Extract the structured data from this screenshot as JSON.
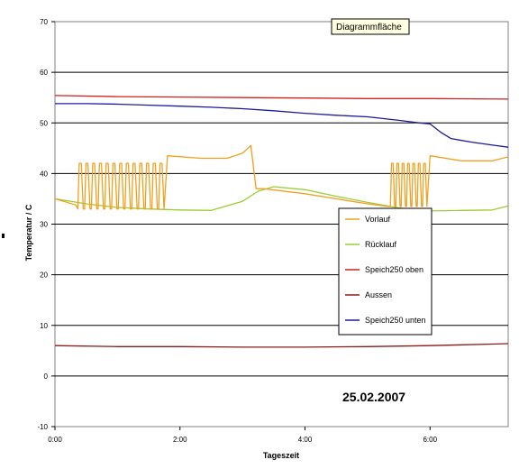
{
  "chart_data": {
    "type": "line",
    "xlabel": "Tageszeit",
    "ylabel": "Temperatur / C",
    "ylim": [
      -10,
      70
    ],
    "yticks": [
      -10,
      0,
      10,
      20,
      30,
      40,
      50,
      60,
      70
    ],
    "xlim": [
      "0:00",
      "7:15"
    ],
    "xticks": [
      "0:00",
      "2:00",
      "4:00",
      "6:00"
    ],
    "grid": "horizontal",
    "legend_position": "right-center",
    "annotation": "25.02.2007",
    "tooltip": "Diagrammfläche",
    "series": [
      {
        "name": "Vorlauf",
        "color": "#f0a020",
        "pulsing": true,
        "x": [
          "0:00",
          "0:20",
          "0:22",
          "1:46",
          "1:48",
          "2:20",
          "2:45",
          "3:00",
          "3:08",
          "3:13",
          "3:20",
          "4:00",
          "4:30",
          "5:00",
          "5:20",
          "5:22",
          "5:58",
          "6:00",
          "6:30",
          "7:00",
          "7:15"
        ],
        "y": [
          35,
          33.8,
          42,
          42,
          43.5,
          43,
          43,
          44,
          45.5,
          37,
          37,
          36,
          35,
          34,
          33.5,
          42,
          42,
          43.5,
          42.5,
          42.5,
          43.3
        ],
        "pulses": [
          {
            "from": "0:22",
            "to": "1:46",
            "count": 13,
            "low": 33,
            "high": 42
          },
          {
            "from": "5:22",
            "to": "5:58",
            "count": 7,
            "low": 33.5,
            "high": 42
          }
        ]
      },
      {
        "name": "Rücklauf",
        "color": "#9acd32",
        "x": [
          "0:00",
          "0:30",
          "1:00",
          "1:30",
          "2:00",
          "2:30",
          "3:00",
          "3:15",
          "3:30",
          "4:00",
          "4:30",
          "5:00",
          "5:30",
          "6:00",
          "6:30",
          "7:00",
          "7:15"
        ],
        "y": [
          35,
          34,
          33.3,
          33,
          32.8,
          32.7,
          34.5,
          36.5,
          37.4,
          36.8,
          35.5,
          34.3,
          33.2,
          32.6,
          32.7,
          32.8,
          33.6
        ]
      },
      {
        "name": "Speich250 oben",
        "color": "#d02020",
        "x": [
          "0:00",
          "1:00",
          "2:00",
          "3:00",
          "4:00",
          "5:00",
          "6:00",
          "7:15"
        ],
        "y": [
          55.4,
          55.2,
          55.1,
          55.0,
          54.9,
          54.8,
          54.8,
          54.7
        ]
      },
      {
        "name": "Aussen",
        "color": "#8b1a1a",
        "x": [
          "0:00",
          "1:00",
          "2:00",
          "3:00",
          "4:00",
          "5:00",
          "6:00",
          "7:00",
          "7:15"
        ],
        "y": [
          6,
          5.8,
          5.8,
          5.7,
          5.7,
          5.8,
          6,
          6.3,
          6.4
        ]
      },
      {
        "name": "Speich250 unten",
        "color": "#1a1aa0",
        "x": [
          "0:00",
          "0:30",
          "1:00",
          "1:30",
          "2:00",
          "2:30",
          "3:00",
          "3:30",
          "4:00",
          "4:30",
          "5:00",
          "5:30",
          "5:50",
          "6:00",
          "6:10",
          "6:20",
          "6:40",
          "7:00",
          "7:15"
        ],
        "y": [
          53.8,
          53.8,
          53.7,
          53.5,
          53.3,
          53.1,
          52.8,
          52.4,
          51.9,
          51.5,
          51.2,
          50.5,
          50.0,
          49.8,
          48.2,
          46.9,
          46.2,
          45.6,
          45.2
        ]
      }
    ]
  }
}
